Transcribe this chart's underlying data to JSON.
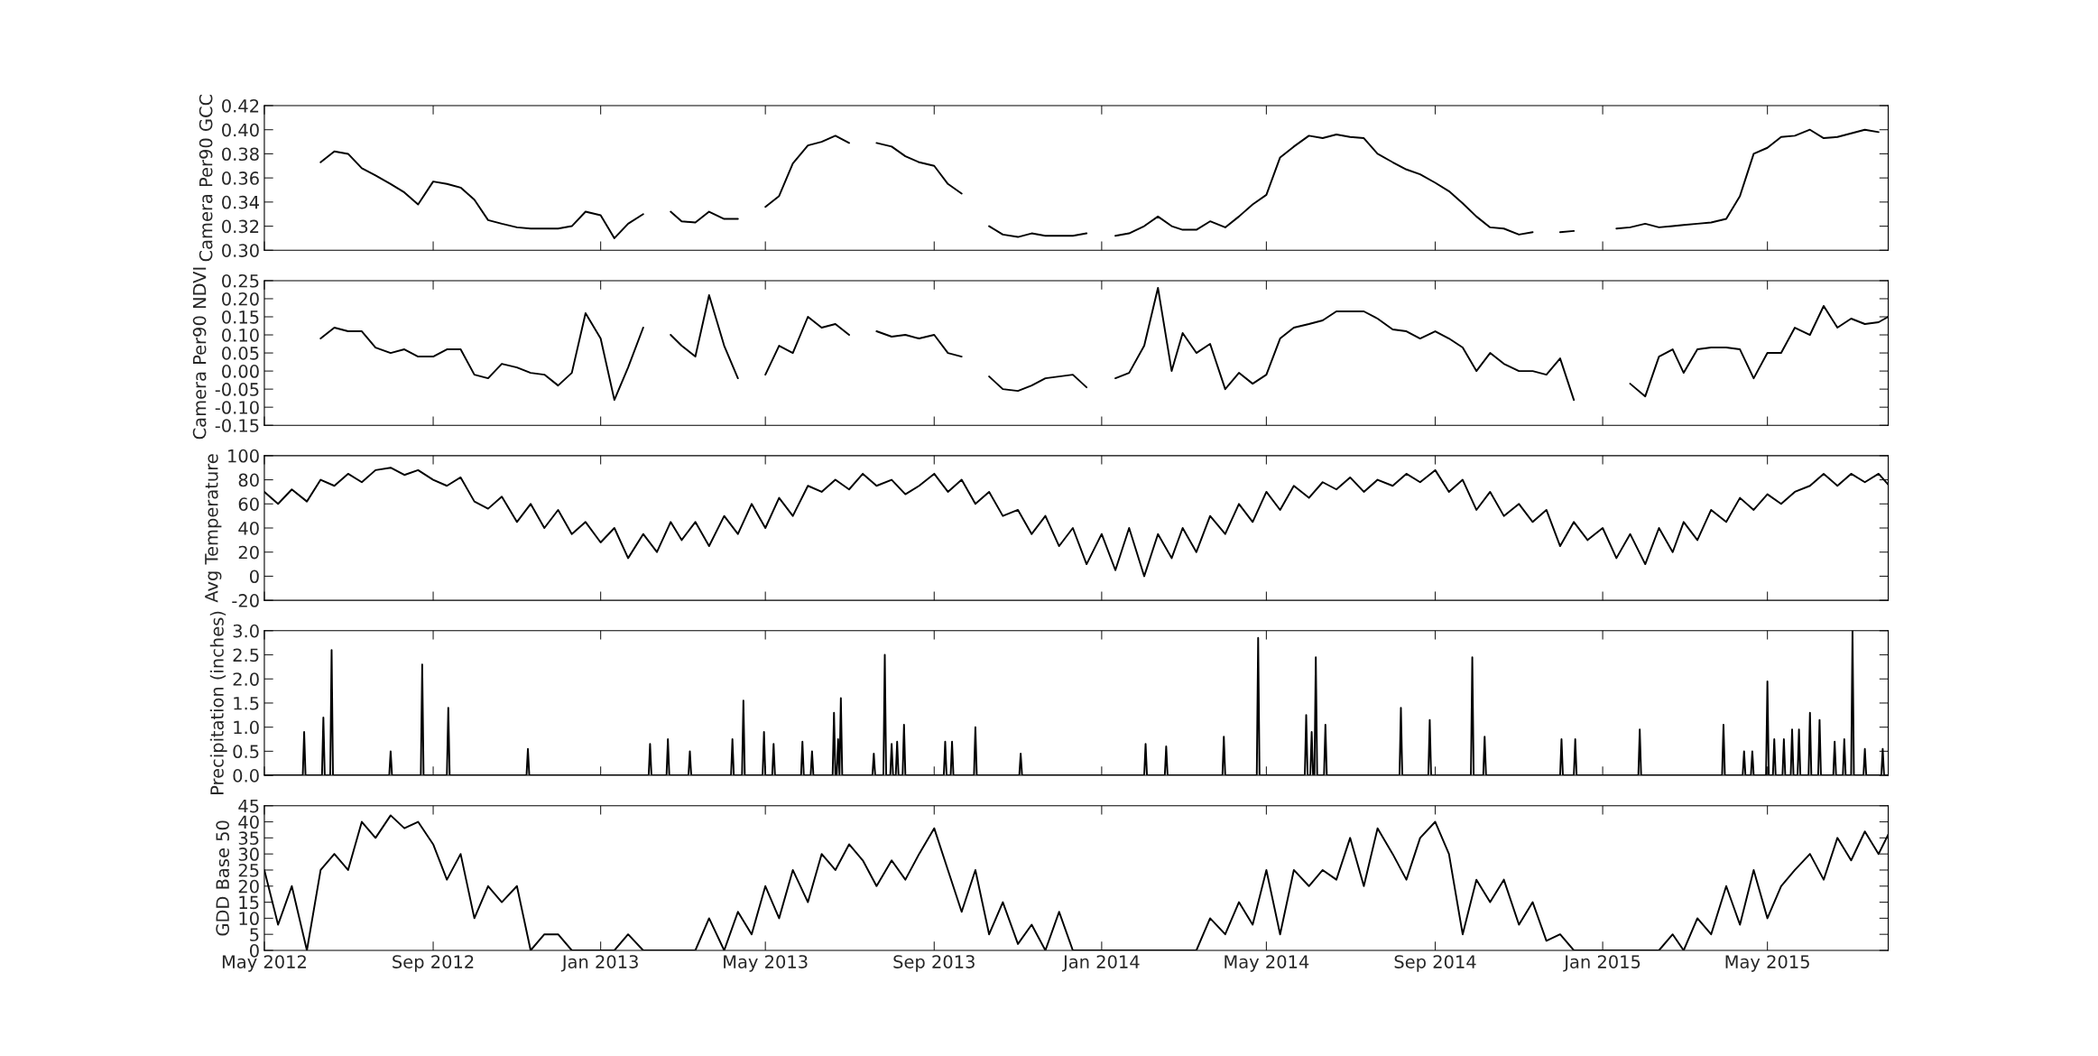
{
  "chart_data": [
    {
      "type": "line",
      "ylabel": "Camera Per90 GCC",
      "tick_labels": "y",
      "xlim": [
        "2012-05-01",
        "2015-07-28"
      ],
      "xticks": [
        {
          "value": "2012-05-01",
          "label": null
        },
        {
          "value": "2012-09-01",
          "label": null
        },
        {
          "value": "2013-01-01",
          "label": null
        },
        {
          "value": "2013-05-01",
          "label": null
        },
        {
          "value": "2013-09-01",
          "label": null
        },
        {
          "value": "2014-01-01",
          "label": null
        },
        {
          "value": "2014-05-01",
          "label": null
        },
        {
          "value": "2014-09-01",
          "label": null
        },
        {
          "value": "2015-01-01",
          "label": null
        },
        {
          "value": "2015-05-01",
          "label": null
        }
      ],
      "ylim": [
        0.3,
        0.42
      ],
      "yticks": [
        {
          "value": 0.3,
          "label": "0.30"
        },
        {
          "value": 0.32,
          "label": "0.32"
        },
        {
          "value": 0.34,
          "label": "0.34"
        },
        {
          "value": 0.36,
          "label": "0.36"
        },
        {
          "value": 0.38,
          "label": "0.38"
        },
        {
          "value": 0.4,
          "label": "0.40"
        },
        {
          "value": 0.42,
          "label": "0.42"
        }
      ],
      "x": [
        "2012-06-11",
        "2012-06-21",
        "2012-07-01",
        "2012-07-11",
        "2012-07-21",
        "2012-08-01",
        "2012-08-11",
        "2012-08-21",
        "2012-09-01",
        "2012-09-11",
        "2012-09-21",
        "2012-10-01",
        "2012-10-11",
        "2012-10-21",
        "2012-11-01",
        "2012-11-11",
        "2012-11-21",
        "2012-12-01",
        "2012-12-11",
        "2012-12-21",
        "2013-01-01",
        "2013-01-11",
        "2013-01-21",
        "2013-02-01",
        "2013-02-11",
        "2013-02-21",
        "2013-03-01",
        "2013-03-11",
        "2013-03-21",
        "2013-04-01",
        "2013-04-11",
        "2013-04-21",
        "2013-05-01",
        "2013-05-11",
        "2013-05-21",
        "2013-06-01",
        "2013-06-11",
        "2013-06-21",
        "2013-07-01",
        "2013-07-11",
        "2013-07-21",
        "2013-08-01",
        "2013-08-11",
        "2013-08-21",
        "2013-09-01",
        "2013-09-11",
        "2013-09-21",
        "2013-10-01",
        "2013-10-11",
        "2013-10-21",
        "2013-11-01",
        "2013-11-11",
        "2013-11-21",
        "2013-12-01",
        "2013-12-11",
        "2013-12-21",
        "2014-01-01",
        "2014-01-11",
        "2014-01-21",
        "2014-02-01",
        "2014-02-11",
        "2014-02-21",
        "2014-03-01",
        "2014-03-11",
        "2014-03-21",
        "2014-04-01",
        "2014-04-11",
        "2014-04-21",
        "2014-05-01",
        "2014-05-11",
        "2014-05-21",
        "2014-06-01",
        "2014-06-11",
        "2014-06-21",
        "2014-07-01",
        "2014-07-11",
        "2014-07-21",
        "2014-08-01",
        "2014-08-11",
        "2014-08-21",
        "2014-09-01",
        "2014-09-11",
        "2014-09-21",
        "2014-10-01",
        "2014-10-11",
        "2014-10-21",
        "2014-11-01",
        "2014-11-11",
        "2014-11-21",
        "2014-12-01",
        "2014-12-11",
        "2014-12-21",
        "2015-01-01",
        "2015-01-11",
        "2015-01-21",
        "2015-02-01",
        "2015-02-11",
        "2015-02-21",
        "2015-03-01",
        "2015-03-11",
        "2015-03-21",
        "2015-04-01",
        "2015-04-11",
        "2015-04-21",
        "2015-05-01",
        "2015-05-11",
        "2015-05-21",
        "2015-06-01",
        "2015-06-11",
        "2015-06-21",
        "2015-07-01",
        "2015-07-11",
        "2015-07-21"
      ],
      "series": [
        {
          "color": "#000000",
          "values": [
            0.373,
            0.382,
            0.38,
            0.368,
            0.362,
            0.355,
            0.348,
            0.338,
            0.357,
            0.355,
            0.352,
            0.342,
            0.325,
            0.322,
            0.319,
            0.318,
            0.318,
            0.318,
            0.32,
            0.332,
            0.329,
            0.31,
            0.322,
            0.33,
            null,
            0.332,
            0.324,
            0.323,
            0.332,
            0.326,
            0.326,
            null,
            0.336,
            0.345,
            0.372,
            0.387,
            0.39,
            0.395,
            0.389,
            null,
            0.389,
            0.386,
            0.378,
            0.373,
            0.37,
            0.355,
            0.347,
            null,
            0.32,
            0.313,
            0.311,
            0.314,
            0.312,
            0.312,
            0.312,
            0.314,
            null,
            0.312,
            0.314,
            0.32,
            0.328,
            0.32,
            0.317,
            0.317,
            0.324,
            0.319,
            0.328,
            0.338,
            0.346,
            0.377,
            0.386,
            0.395,
            0.393,
            0.396,
            0.394,
            0.393,
            0.38,
            0.373,
            0.367,
            0.363,
            0.356,
            0.349,
            0.339,
            0.328,
            0.319,
            0.318,
            0.313,
            0.315,
            null,
            0.315,
            0.316,
            null,
            null,
            0.318,
            0.319,
            0.322,
            0.319,
            0.32,
            0.321,
            0.322,
            0.323,
            0.326,
            0.345,
            0.38,
            0.385,
            0.394,
            0.395,
            0.4,
            0.393,
            0.394,
            0.397,
            0.4,
            0.398
          ]
        }
      ]
    },
    {
      "type": "line",
      "ylabel": "Camera Per90 NDVI",
      "tick_labels": "y",
      "xlim": [
        "2012-05-01",
        "2015-07-28"
      ],
      "xticks": [
        {
          "value": "2012-05-01",
          "label": null
        },
        {
          "value": "2012-09-01",
          "label": null
        },
        {
          "value": "2013-01-01",
          "label": null
        },
        {
          "value": "2013-05-01",
          "label": null
        },
        {
          "value": "2013-09-01",
          "label": null
        },
        {
          "value": "2014-01-01",
          "label": null
        },
        {
          "value": "2014-05-01",
          "label": null
        },
        {
          "value": "2014-09-01",
          "label": null
        },
        {
          "value": "2015-01-01",
          "label": null
        },
        {
          "value": "2015-05-01",
          "label": null
        }
      ],
      "ylim": [
        -0.15,
        0.25
      ],
      "yticks": [
        {
          "value": -0.15,
          "label": "-0.15"
        },
        {
          "value": -0.1,
          "label": "-0.10"
        },
        {
          "value": -0.05,
          "label": "-0.05"
        },
        {
          "value": 0,
          "label": "0.00"
        },
        {
          "value": 0.05,
          "label": "0.05"
        },
        {
          "value": 0.1,
          "label": "0.10"
        },
        {
          "value": 0.15,
          "label": "0.15"
        },
        {
          "value": 0.2,
          "label": "0.20"
        },
        {
          "value": 0.25,
          "label": "0.25"
        }
      ],
      "x": [
        "2012-06-11",
        "2012-06-21",
        "2012-07-01",
        "2012-07-11",
        "2012-07-21",
        "2012-08-01",
        "2012-08-11",
        "2012-08-21",
        "2012-09-01",
        "2012-09-11",
        "2012-09-21",
        "2012-10-01",
        "2012-10-11",
        "2012-10-21",
        "2012-11-01",
        "2012-11-11",
        "2012-11-21",
        "2012-12-01",
        "2012-12-11",
        "2012-12-21",
        "2013-01-01",
        "2013-01-11",
        "2013-01-21",
        "2013-02-01",
        "2013-02-11",
        "2013-02-21",
        "2013-03-01",
        "2013-03-11",
        "2013-03-21",
        "2013-04-01",
        "2013-04-11",
        "2013-04-21",
        "2013-05-01",
        "2013-05-11",
        "2013-05-21",
        "2013-06-01",
        "2013-06-11",
        "2013-06-21",
        "2013-07-01",
        "2013-07-11",
        "2013-07-21",
        "2013-08-01",
        "2013-08-11",
        "2013-08-21",
        "2013-09-01",
        "2013-09-11",
        "2013-09-21",
        "2013-10-01",
        "2013-10-11",
        "2013-10-21",
        "2013-11-01",
        "2013-11-11",
        "2013-11-21",
        "2013-12-01",
        "2013-12-11",
        "2013-12-21",
        "2014-01-01",
        "2014-01-11",
        "2014-01-21",
        "2014-02-01",
        "2014-02-11",
        "2014-02-21",
        "2014-03-01",
        "2014-03-11",
        "2014-03-21",
        "2014-04-01",
        "2014-04-11",
        "2014-04-21",
        "2014-05-01",
        "2014-05-11",
        "2014-05-21",
        "2014-06-01",
        "2014-06-11",
        "2014-06-21",
        "2014-07-01",
        "2014-07-11",
        "2014-07-21",
        "2014-08-01",
        "2014-08-11",
        "2014-08-21",
        "2014-09-01",
        "2014-09-11",
        "2014-09-21",
        "2014-10-01",
        "2014-10-11",
        "2014-10-21",
        "2014-11-01",
        "2014-11-11",
        "2014-11-21",
        "2014-12-01",
        "2014-12-11",
        "2014-12-21",
        "2015-01-01",
        "2015-01-11",
        "2015-01-21",
        "2015-02-01",
        "2015-02-11",
        "2015-02-21",
        "2015-03-01",
        "2015-03-11",
        "2015-03-21",
        "2015-04-01",
        "2015-04-11",
        "2015-04-21",
        "2015-05-01",
        "2015-05-11",
        "2015-05-21",
        "2015-06-01",
        "2015-06-11",
        "2015-06-21",
        "2015-07-01",
        "2015-07-11",
        "2015-07-21",
        "2015-07-28"
      ],
      "series": [
        {
          "color": "#000000",
          "values": [
            0.09,
            0.12,
            0.11,
            0.11,
            0.065,
            0.05,
            0.06,
            0.04,
            0.04,
            0.06,
            0.06,
            -0.01,
            -0.02,
            0.02,
            0.01,
            -0.005,
            -0.01,
            -0.04,
            -0.005,
            0.16,
            0.09,
            -0.08,
            0.01,
            0.12,
            null,
            0.1,
            0.07,
            0.04,
            0.21,
            0.07,
            -0.02,
            null,
            -0.01,
            0.07,
            0.05,
            0.15,
            0.12,
            0.13,
            0.1,
            null,
            0.11,
            0.095,
            0.1,
            0.09,
            0.1,
            0.05,
            0.04,
            null,
            -0.015,
            -0.05,
            -0.055,
            -0.04,
            -0.02,
            -0.015,
            -0.01,
            -0.045,
            null,
            -0.02,
            -0.005,
            0.07,
            0.23,
            0.0,
            0.105,
            0.05,
            0.075,
            -0.05,
            -0.005,
            -0.035,
            -0.01,
            0.09,
            0.12,
            0.13,
            0.14,
            0.165,
            0.165,
            0.165,
            0.145,
            0.115,
            0.11,
            0.09,
            0.11,
            0.09,
            0.065,
            0.0,
            0.05,
            0.02,
            0.0,
            0.0,
            -0.01,
            0.035,
            -0.08,
            null,
            null,
            null,
            -0.035,
            -0.07,
            0.04,
            0.06,
            -0.005,
            0.06,
            0.065,
            0.065,
            0.06,
            -0.02,
            0.05,
            0.05,
            0.12,
            0.1,
            0.18,
            0.12,
            0.145,
            0.13,
            0.135,
            0.15
          ]
        }
      ]
    },
    {
      "type": "line",
      "ylabel": "Avg Temperature",
      "tick_labels": "y",
      "xlim": [
        "2012-05-01",
        "2015-07-28"
      ],
      "xticks": [
        {
          "value": "2012-05-01",
          "label": null
        },
        {
          "value": "2012-09-01",
          "label": null
        },
        {
          "value": "2013-01-01",
          "label": null
        },
        {
          "value": "2013-05-01",
          "label": null
        },
        {
          "value": "2013-09-01",
          "label": null
        },
        {
          "value": "2014-01-01",
          "label": null
        },
        {
          "value": "2014-05-01",
          "label": null
        },
        {
          "value": "2014-09-01",
          "label": null
        },
        {
          "value": "2015-01-01",
          "label": null
        },
        {
          "value": "2015-05-01",
          "label": null
        }
      ],
      "ylim": [
        -20,
        100
      ],
      "yticks": [
        -20,
        0,
        20,
        40,
        60,
        80,
        100
      ],
      "x": [
        "2012-05-01",
        "2012-05-11",
        "2012-05-21",
        "2012-06-01",
        "2012-06-11",
        "2012-06-21",
        "2012-07-01",
        "2012-07-11",
        "2012-07-21",
        "2012-08-01",
        "2012-08-11",
        "2012-08-21",
        "2012-09-01",
        "2012-09-11",
        "2012-09-21",
        "2012-10-01",
        "2012-10-11",
        "2012-10-21",
        "2012-11-01",
        "2012-11-11",
        "2012-11-21",
        "2012-12-01",
        "2012-12-11",
        "2012-12-21",
        "2013-01-01",
        "2013-01-11",
        "2013-01-21",
        "2013-02-01",
        "2013-02-11",
        "2013-02-21",
        "2013-03-01",
        "2013-03-11",
        "2013-03-21",
        "2013-04-01",
        "2013-04-11",
        "2013-04-21",
        "2013-05-01",
        "2013-05-11",
        "2013-05-21",
        "2013-06-01",
        "2013-06-11",
        "2013-06-21",
        "2013-07-01",
        "2013-07-11",
        "2013-07-21",
        "2013-08-01",
        "2013-08-11",
        "2013-08-21",
        "2013-09-01",
        "2013-09-11",
        "2013-09-21",
        "2013-10-01",
        "2013-10-11",
        "2013-10-21",
        "2013-11-01",
        "2013-11-11",
        "2013-11-21",
        "2013-12-01",
        "2013-12-11",
        "2013-12-21",
        "2014-01-01",
        "2014-01-11",
        "2014-01-21",
        "2014-02-01",
        "2014-02-11",
        "2014-02-21",
        "2014-03-01",
        "2014-03-11",
        "2014-03-21",
        "2014-04-01",
        "2014-04-11",
        "2014-04-21",
        "2014-05-01",
        "2014-05-11",
        "2014-05-21",
        "2014-06-01",
        "2014-06-11",
        "2014-06-21",
        "2014-07-01",
        "2014-07-11",
        "2014-07-21",
        "2014-08-01",
        "2014-08-11",
        "2014-08-21",
        "2014-09-01",
        "2014-09-11",
        "2014-09-21",
        "2014-10-01",
        "2014-10-11",
        "2014-10-21",
        "2014-11-01",
        "2014-11-11",
        "2014-11-21",
        "2014-12-01",
        "2014-12-11",
        "2014-12-21",
        "2015-01-01",
        "2015-01-11",
        "2015-01-21",
        "2015-02-01",
        "2015-02-11",
        "2015-02-21",
        "2015-03-01",
        "2015-03-11",
        "2015-03-21",
        "2015-04-01",
        "2015-04-11",
        "2015-04-21",
        "2015-05-01",
        "2015-05-11",
        "2015-05-21",
        "2015-06-01",
        "2015-06-11",
        "2015-06-21",
        "2015-07-01",
        "2015-07-11",
        "2015-07-21",
        "2015-07-28"
      ],
      "series": [
        {
          "color": "#000000",
          "values": [
            70,
            60,
            72,
            62,
            80,
            75,
            85,
            78,
            88,
            90,
            84,
            88,
            80,
            75,
            82,
            62,
            56,
            66,
            45,
            60,
            40,
            55,
            35,
            45,
            28,
            40,
            15,
            35,
            20,
            45,
            30,
            45,
            25,
            50,
            35,
            60,
            40,
            65,
            50,
            75,
            70,
            80,
            72,
            85,
            75,
            80,
            68,
            75,
            85,
            70,
            80,
            60,
            70,
            50,
            55,
            35,
            50,
            25,
            40,
            10,
            35,
            5,
            40,
            0,
            35,
            15,
            40,
            20,
            50,
            35,
            60,
            45,
            70,
            55,
            75,
            65,
            78,
            72,
            82,
            70,
            80,
            75,
            85,
            78,
            88,
            70,
            80,
            55,
            70,
            50,
            60,
            45,
            55,
            25,
            45,
            30,
            40,
            15,
            35,
            10,
            40,
            20,
            45,
            30,
            55,
            45,
            65,
            55,
            68,
            60,
            70,
            75,
            85,
            75,
            85,
            78,
            85,
            76
          ]
        }
      ]
    },
    {
      "type": "line",
      "ylabel": "Precipitation (inches)",
      "tick_labels": "y",
      "xlim": [
        "2012-05-01",
        "2015-07-28"
      ],
      "xticks": [
        {
          "value": "2012-05-01",
          "label": null
        },
        {
          "value": "2012-09-01",
          "label": null
        },
        {
          "value": "2013-01-01",
          "label": null
        },
        {
          "value": "2013-05-01",
          "label": null
        },
        {
          "value": "2013-09-01",
          "label": null
        },
        {
          "value": "2014-01-01",
          "label": null
        },
        {
          "value": "2014-05-01",
          "label": null
        },
        {
          "value": "2014-09-01",
          "label": null
        },
        {
          "value": "2015-01-01",
          "label": null
        },
        {
          "value": "2015-05-01",
          "label": null
        }
      ],
      "ylim": [
        0,
        3
      ],
      "yticks": [
        {
          "value": 0,
          "label": "0.0"
        },
        {
          "value": 0.5,
          "label": "0.5"
        },
        {
          "value": 1,
          "label": "1.0"
        },
        {
          "value": 1.5,
          "label": "1.5"
        },
        {
          "value": 2,
          "label": "2.0"
        },
        {
          "value": 2.5,
          "label": "2.5"
        },
        {
          "value": 3,
          "label": "3.0"
        }
      ],
      "x": [
        "2012-05-01",
        "2012-05-29",
        "2012-05-30",
        "2012-05-31",
        "2012-06-12",
        "2012-06-13",
        "2012-06-14",
        "2012-06-18",
        "2012-06-19",
        "2012-06-20",
        "2012-07-31",
        "2012-08-01",
        "2012-08-02",
        "2012-08-23",
        "2012-08-24",
        "2012-08-25",
        "2012-09-11",
        "2012-09-12",
        "2012-09-13",
        "2012-11-08",
        "2012-11-09",
        "2012-11-10",
        "2013-02-05",
        "2013-02-06",
        "2013-02-07",
        "2013-02-18",
        "2013-02-19",
        "2013-02-20",
        "2013-03-06",
        "2013-03-07",
        "2013-03-08",
        "2013-04-06",
        "2013-04-07",
        "2013-04-08",
        "2013-04-14",
        "2013-04-15",
        "2013-04-16",
        "2013-04-29",
        "2013-04-30",
        "2013-05-01",
        "2013-05-06",
        "2013-05-07",
        "2013-05-08",
        "2013-05-27",
        "2013-05-28",
        "2013-05-29",
        "2013-06-03",
        "2013-06-04",
        "2013-06-05",
        "2013-06-19",
        "2013-06-20",
        "2013-06-21",
        "2013-06-22",
        "2013-06-23",
        "2013-06-24",
        "2013-06-24",
        "2013-06-25",
        "2013-06-26",
        "2013-07-18",
        "2013-07-19",
        "2013-07-20",
        "2013-07-26",
        "2013-07-27",
        "2013-07-28",
        "2013-07-31",
        "2013-08-01",
        "2013-08-02",
        "2013-08-04",
        "2013-08-05",
        "2013-08-06",
        "2013-08-09",
        "2013-08-10",
        "2013-08-11",
        "2013-09-08",
        "2013-09-09",
        "2013-09-10",
        "2013-09-13",
        "2013-09-14",
        "2013-09-15",
        "2013-09-30",
        "2013-10-01",
        "2013-10-02",
        "2013-11-02",
        "2013-11-03",
        "2013-11-04",
        "2014-02-01",
        "2014-02-02",
        "2014-02-03",
        "2014-02-16",
        "2014-02-17",
        "2014-02-18",
        "2014-03-30",
        "2014-03-31",
        "2014-04-01",
        "2014-04-24",
        "2014-04-25",
        "2014-04-26",
        "2014-05-29",
        "2014-05-30",
        "2014-05-31",
        "2014-06-02",
        "2014-06-03",
        "2014-06-04",
        "2014-06-05",
        "2014-06-06",
        "2014-06-07",
        "2014-06-12",
        "2014-06-13",
        "2014-06-14",
        "2014-08-06",
        "2014-08-07",
        "2014-08-08",
        "2014-08-27",
        "2014-08-28",
        "2014-08-29",
        "2014-09-27",
        "2014-09-28",
        "2014-09-29",
        "2014-10-06",
        "2014-10-07",
        "2014-10-08",
        "2014-12-01",
        "2014-12-02",
        "2014-12-03",
        "2014-12-11",
        "2014-12-12",
        "2014-12-13",
        "2015-01-27",
        "2015-01-28",
        "2015-01-29",
        "2015-03-29",
        "2015-03-30",
        "2015-03-31",
        "2015-04-13",
        "2015-04-14",
        "2015-04-15",
        "2015-04-19",
        "2015-04-20",
        "2015-04-21",
        "2015-04-30",
        "2015-05-01",
        "2015-05-02",
        "2015-05-05",
        "2015-05-06",
        "2015-05-07",
        "2015-05-12",
        "2015-05-13",
        "2015-05-14",
        "2015-05-18",
        "2015-05-19",
        "2015-05-20",
        "2015-05-23",
        "2015-05-24",
        "2015-05-25",
        "2015-05-31",
        "2015-06-01",
        "2015-06-02",
        "2015-06-07",
        "2015-06-08",
        "2015-06-09",
        "2015-06-18",
        "2015-06-19",
        "2015-06-20",
        "2015-06-25",
        "2015-06-26",
        "2015-06-27",
        "2015-07-01",
        "2015-07-02",
        "2015-07-03",
        "2015-07-10",
        "2015-07-11",
        "2015-07-12",
        "2015-07-23",
        "2015-07-24",
        "2015-07-25",
        "2015-07-28"
      ],
      "series": [
        {
          "color": "#000000",
          "values": [
            0,
            0,
            0.9,
            0,
            0,
            1.2,
            0,
            0,
            2.6,
            0,
            0,
            0.5,
            0,
            0,
            2.3,
            0,
            0,
            1.4,
            0,
            0,
            0.55,
            0,
            0,
            0.65,
            0,
            0,
            0.75,
            0,
            0,
            0.5,
            0,
            0,
            0.75,
            0,
            0,
            1.55,
            0,
            0,
            0.9,
            0,
            0,
            0.65,
            0,
            0,
            0.7,
            0,
            0,
            0.5,
            0,
            0,
            1.3,
            0,
            0,
            0.75,
            0,
            0,
            1.6,
            0,
            0,
            0.45,
            0,
            0,
            2.5,
            0,
            0,
            0.65,
            0,
            0,
            0.7,
            0,
            0,
            1.05,
            0,
            0,
            0.7,
            0,
            0,
            0.7,
            0,
            0,
            1.0,
            0,
            0,
            0.45,
            0,
            0,
            0.65,
            0,
            0,
            0.6,
            0,
            0,
            0.8,
            0,
            0,
            2.85,
            0,
            0,
            1.25,
            0,
            0,
            0.9,
            0,
            0,
            2.45,
            0,
            0,
            1.05,
            0,
            0,
            1.4,
            0,
            0,
            1.15,
            0,
            0,
            2.45,
            0,
            0,
            0.8,
            0,
            0,
            0.75,
            0,
            0,
            0.75,
            0,
            0,
            0.95,
            0,
            0,
            1.05,
            0,
            0,
            0.5,
            0,
            0,
            0.5,
            0,
            0,
            1.95,
            0,
            0,
            0.75,
            0,
            0,
            0.75,
            0,
            0,
            0.95,
            0,
            0,
            0.95,
            0,
            0,
            1.3,
            0,
            0,
            1.15,
            0,
            0,
            0.7,
            0,
            0,
            0.75,
            0,
            0,
            3.0,
            0,
            0,
            0.55,
            0,
            0,
            0.55,
            0,
            0
          ]
        }
      ]
    },
    {
      "type": "line",
      "ylabel": "GDD Base 50",
      "xlim": [
        "2012-05-01",
        "2015-07-28"
      ],
      "xticks": [
        {
          "value": "2012-05-01",
          "label": "May 2012"
        },
        {
          "value": "2012-09-01",
          "label": "Sep 2012"
        },
        {
          "value": "2013-01-01",
          "label": "Jan 2013"
        },
        {
          "value": "2013-05-01",
          "label": "May 2013"
        },
        {
          "value": "2013-09-01",
          "label": "Sep 2013"
        },
        {
          "value": "2014-01-01",
          "label": "Jan 2014"
        },
        {
          "value": "2014-05-01",
          "label": "May 2014"
        },
        {
          "value": "2014-09-01",
          "label": "Sep 2014"
        },
        {
          "value": "2015-01-01",
          "label": "Jan 2015"
        },
        {
          "value": "2015-05-01",
          "label": "May 2015"
        }
      ],
      "ylim": [
        0,
        45
      ],
      "yticks": [
        0,
        5,
        10,
        15,
        20,
        25,
        30,
        35,
        40,
        45
      ],
      "x": [
        "2012-05-01",
        "2012-05-11",
        "2012-05-21",
        "2012-06-01",
        "2012-06-11",
        "2012-06-21",
        "2012-07-01",
        "2012-07-11",
        "2012-07-21",
        "2012-08-01",
        "2012-08-11",
        "2012-08-21",
        "2012-09-01",
        "2012-09-11",
        "2012-09-21",
        "2012-10-01",
        "2012-10-11",
        "2012-10-21",
        "2012-11-01",
        "2012-11-11",
        "2012-11-21",
        "2012-12-01",
        "2012-12-11",
        "2012-12-21",
        "2013-01-01",
        "2013-01-11",
        "2013-01-21",
        "2013-02-01",
        "2013-02-11",
        "2013-02-21",
        "2013-03-01",
        "2013-03-11",
        "2013-03-21",
        "2013-04-01",
        "2013-04-11",
        "2013-04-21",
        "2013-05-01",
        "2013-05-11",
        "2013-05-21",
        "2013-06-01",
        "2013-06-11",
        "2013-06-21",
        "2013-07-01",
        "2013-07-11",
        "2013-07-21",
        "2013-08-01",
        "2013-08-11",
        "2013-08-21",
        "2013-09-01",
        "2013-09-11",
        "2013-09-21",
        "2013-10-01",
        "2013-10-11",
        "2013-10-21",
        "2013-11-01",
        "2013-11-11",
        "2013-11-21",
        "2013-12-01",
        "2013-12-11",
        "2013-12-21",
        "2014-01-01",
        "2014-01-11",
        "2014-01-21",
        "2014-02-01",
        "2014-02-11",
        "2014-02-21",
        "2014-03-01",
        "2014-03-11",
        "2014-03-21",
        "2014-04-01",
        "2014-04-11",
        "2014-04-21",
        "2014-05-01",
        "2014-05-11",
        "2014-05-21",
        "2014-06-01",
        "2014-06-11",
        "2014-06-21",
        "2014-07-01",
        "2014-07-11",
        "2014-07-21",
        "2014-08-01",
        "2014-08-11",
        "2014-08-21",
        "2014-09-01",
        "2014-09-11",
        "2014-09-21",
        "2014-10-01",
        "2014-10-11",
        "2014-10-21",
        "2014-11-01",
        "2014-11-11",
        "2014-11-21",
        "2014-12-01",
        "2014-12-11",
        "2014-12-21",
        "2015-01-01",
        "2015-01-11",
        "2015-01-21",
        "2015-02-01",
        "2015-02-11",
        "2015-02-21",
        "2015-03-01",
        "2015-03-11",
        "2015-03-21",
        "2015-04-01",
        "2015-04-11",
        "2015-04-21",
        "2015-05-01",
        "2015-05-11",
        "2015-05-21",
        "2015-06-01",
        "2015-06-11",
        "2015-06-21",
        "2015-07-01",
        "2015-07-11",
        "2015-07-21",
        "2015-07-28"
      ],
      "series": [
        {
          "color": "#000000",
          "values": [
            25,
            8,
            20,
            0,
            25,
            30,
            25,
            40,
            35,
            42,
            38,
            40,
            33,
            22,
            30,
            10,
            20,
            15,
            20,
            0,
            5,
            5,
            0,
            0,
            0,
            0,
            5,
            0,
            0,
            0,
            0,
            0,
            10,
            0,
            12,
            5,
            20,
            10,
            25,
            15,
            30,
            25,
            33,
            28,
            20,
            28,
            22,
            30,
            38,
            25,
            12,
            25,
            5,
            15,
            2,
            8,
            0,
            12,
            0,
            0,
            0,
            0,
            0,
            0,
            0,
            0,
            0,
            0,
            10,
            5,
            15,
            8,
            25,
            5,
            25,
            20,
            25,
            22,
            35,
            20,
            38,
            30,
            22,
            35,
            40,
            30,
            5,
            22,
            15,
            22,
            8,
            15,
            3,
            5,
            0,
            0,
            0,
            0,
            0,
            0,
            0,
            5,
            0,
            10,
            5,
            20,
            8,
            25,
            10,
            20,
            25,
            30,
            22,
            35,
            28,
            37,
            30,
            36
          ]
        }
      ]
    }
  ]
}
